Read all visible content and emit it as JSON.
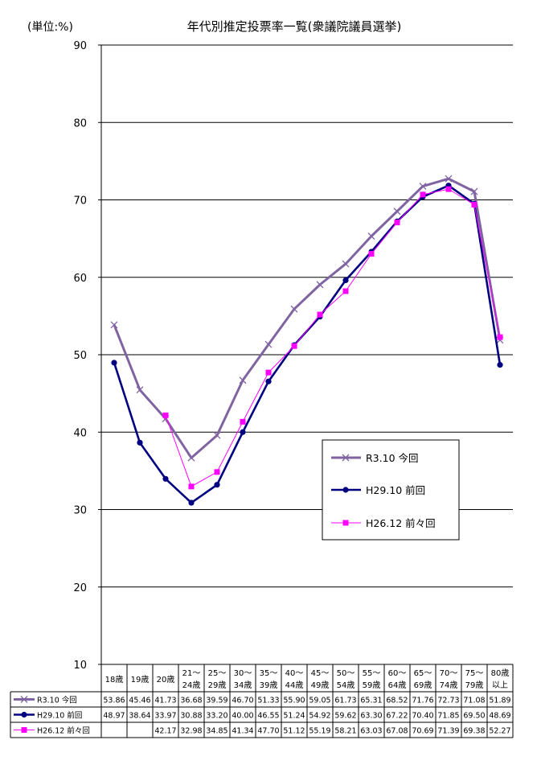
{
  "unit_label": "(単位:%)",
  "chart_data": {
    "type": "line",
    "title": "年代別推定投票率一覧(衆議院議員選挙)",
    "ylim": [
      10,
      90
    ],
    "yticks": [
      10,
      20,
      30,
      40,
      50,
      60,
      70,
      80,
      90
    ],
    "grid": true,
    "legend_position": "lower-right",
    "categories": [
      {
        "line1": "18歳",
        "line2": ""
      },
      {
        "line1": "19歳",
        "line2": ""
      },
      {
        "line1": "20歳",
        "line2": ""
      },
      {
        "line1": "21〜",
        "line2": "24歳"
      },
      {
        "line1": "25〜",
        "line2": "29歳"
      },
      {
        "line1": "30〜",
        "line2": "34歳"
      },
      {
        "line1": "35〜",
        "line2": "39歳"
      },
      {
        "line1": "40〜",
        "line2": "44歳"
      },
      {
        "line1": "45〜",
        "line2": "49歳"
      },
      {
        "line1": "50〜",
        "line2": "54歳"
      },
      {
        "line1": "55〜",
        "line2": "59歳"
      },
      {
        "line1": "60〜",
        "line2": "64歳"
      },
      {
        "line1": "65〜",
        "line2": "69歳"
      },
      {
        "line1": "70〜",
        "line2": "74歳"
      },
      {
        "line1": "75〜",
        "line2": "79歳"
      },
      {
        "line1": "80歳",
        "line2": "以上"
      }
    ],
    "series": [
      {
        "name": "R3.10 今回",
        "color": "#8064a2",
        "marker": "x",
        "values": [
          53.86,
          45.46,
          41.73,
          36.68,
          39.59,
          46.7,
          51.33,
          55.9,
          59.05,
          61.73,
          65.31,
          68.52,
          71.76,
          72.73,
          71.08,
          51.89
        ],
        "labels": [
          "53.86",
          "45.46",
          "41.73",
          "36.68",
          "39.59",
          "46.70",
          "51.33",
          "55.90",
          "59.05",
          "61.73",
          "65.31",
          "68.52",
          "71.76",
          "72.73",
          "71.08",
          "51.89"
        ]
      },
      {
        "name": "H29.10 前回",
        "color": "#000080",
        "marker": "circle",
        "values": [
          48.97,
          38.64,
          33.97,
          30.88,
          33.2,
          40.0,
          46.55,
          51.24,
          54.92,
          59.62,
          63.3,
          67.22,
          70.4,
          71.85,
          69.5,
          48.69
        ],
        "labels": [
          "48.97",
          "38.64",
          "33.97",
          "30.88",
          "33.20",
          "40.00",
          "46.55",
          "51.24",
          "54.92",
          "59.62",
          "63.30",
          "67.22",
          "70.40",
          "71.85",
          "69.50",
          "48.69"
        ]
      },
      {
        "name": "H26.12 前々回",
        "color": "#ff00ff",
        "marker": "square",
        "values": [
          null,
          null,
          42.17,
          32.98,
          34.85,
          41.34,
          47.7,
          51.12,
          55.19,
          58.21,
          63.03,
          67.08,
          70.69,
          71.39,
          69.38,
          52.27
        ],
        "labels": [
          "",
          "",
          "42.17",
          "32.98",
          "34.85",
          "41.34",
          "47.70",
          "51.12",
          "55.19",
          "58.21",
          "63.03",
          "67.08",
          "70.69",
          "71.39",
          "69.38",
          "52.27"
        ]
      }
    ]
  }
}
